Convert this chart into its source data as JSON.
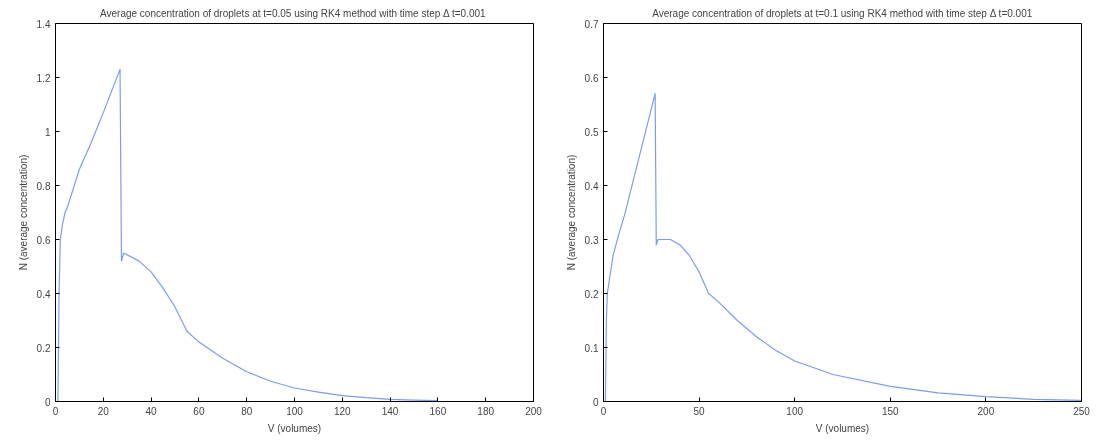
{
  "chart_data": [
    {
      "type": "line",
      "title": "Average concentration of droplets at t=0.05 using  RK4 method with time step Δ t=0.001",
      "xlabel": "V (volumes)",
      "ylabel": "N (average concentration)",
      "color": "#7b9cf0",
      "grid": false,
      "xlim": [
        0,
        200
      ],
      "ylim": [
        0,
        1.4
      ],
      "xticks": [
        0,
        20,
        40,
        60,
        80,
        100,
        120,
        140,
        160,
        180,
        200
      ],
      "yticks": [
        0,
        0.2,
        0.4,
        0.6,
        0.8,
        1,
        1.2,
        1.4
      ],
      "x": [
        1,
        1.5,
        2,
        3,
        4,
        5,
        10,
        15,
        20,
        27,
        27.6,
        28.5,
        35,
        40,
        45,
        50,
        55,
        60,
        70,
        80,
        90,
        100,
        110,
        120,
        130,
        140,
        150,
        160
      ],
      "values": [
        0,
        0.4,
        0.6,
        0.66,
        0.7,
        0.72,
        0.86,
        0.96,
        1.07,
        1.23,
        0.52,
        0.55,
        0.52,
        0.48,
        0.42,
        0.35,
        0.26,
        0.22,
        0.16,
        0.11,
        0.075,
        0.05,
        0.035,
        0.022,
        0.014,
        0.008,
        0.005,
        0.003
      ]
    },
    {
      "type": "line",
      "title": "Average concentration of droplets at t=0.1 using RK4 method with time step Δ t=0.001",
      "xlabel": "V (volumes)",
      "ylabel": "N (average concentration)",
      "color": "#7b9cf0",
      "grid": false,
      "xlim": [
        0,
        250
      ],
      "ylim": [
        0,
        0.7
      ],
      "xticks": [
        0,
        50,
        100,
        150,
        200,
        250
      ],
      "yticks": [
        0,
        0.1,
        0.2,
        0.3,
        0.4,
        0.5,
        0.6,
        0.7
      ],
      "x": [
        1,
        1.5,
        2,
        5,
        8,
        11,
        27,
        27.6,
        28.5,
        35,
        40,
        45,
        50,
        55,
        60,
        70,
        80,
        90,
        100,
        120,
        150,
        175,
        200,
        225,
        250
      ],
      "values": [
        0,
        0.15,
        0.2,
        0.27,
        0.31,
        0.345,
        0.57,
        0.29,
        0.3,
        0.3,
        0.29,
        0.27,
        0.24,
        0.2,
        0.185,
        0.15,
        0.12,
        0.095,
        0.075,
        0.05,
        0.028,
        0.016,
        0.009,
        0.004,
        0.002
      ]
    }
  ]
}
